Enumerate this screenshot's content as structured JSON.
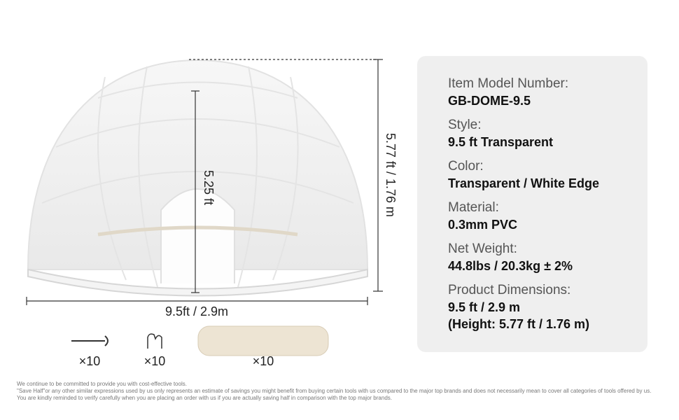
{
  "dimensions": {
    "inner_height": "5.25 ft",
    "total_height": "5.77 ft / 1.76 m",
    "diameter": "9.5ft / 2.9m"
  },
  "accessories": [
    {
      "item": "stake",
      "quantity": "×10"
    },
    {
      "item": "hook",
      "quantity": "×10"
    },
    {
      "item": "sandbag",
      "quantity": "×10"
    }
  ],
  "specs": [
    {
      "label": "Item Model Number:",
      "value": [
        "GB-DOME-9.5"
      ]
    },
    {
      "label": "Style:",
      "value": [
        "9.5 ft Transparent"
      ]
    },
    {
      "label": "Color:",
      "value": [
        "Transparent / White Edge"
      ]
    },
    {
      "label": "Material:",
      "value": [
        "0.3mm PVC"
      ]
    },
    {
      "label": "Net Weight:",
      "value": [
        "44.8lbs / 20.3kg ± 2%"
      ]
    },
    {
      "label": "Product Dimensions:",
      "value": [
        "9.5 ft / 2.9 m",
        "(Height: 5.77 ft / 1.76 m)"
      ]
    }
  ],
  "disclaimer": [
    "We continue to be committed to provide you with cost-effective tools.",
    "\"Save Half\"or any other similar expressions used by us only represents an estimate of savings you might benefit from buying certain tools with us compared to the major top brands and does not necessarily mean to cover all categories of tools offered by us.",
    "You are kindly reminded to verify carefully when you are placing an order with us if you are actually saving half in comparison with the top major brands."
  ]
}
